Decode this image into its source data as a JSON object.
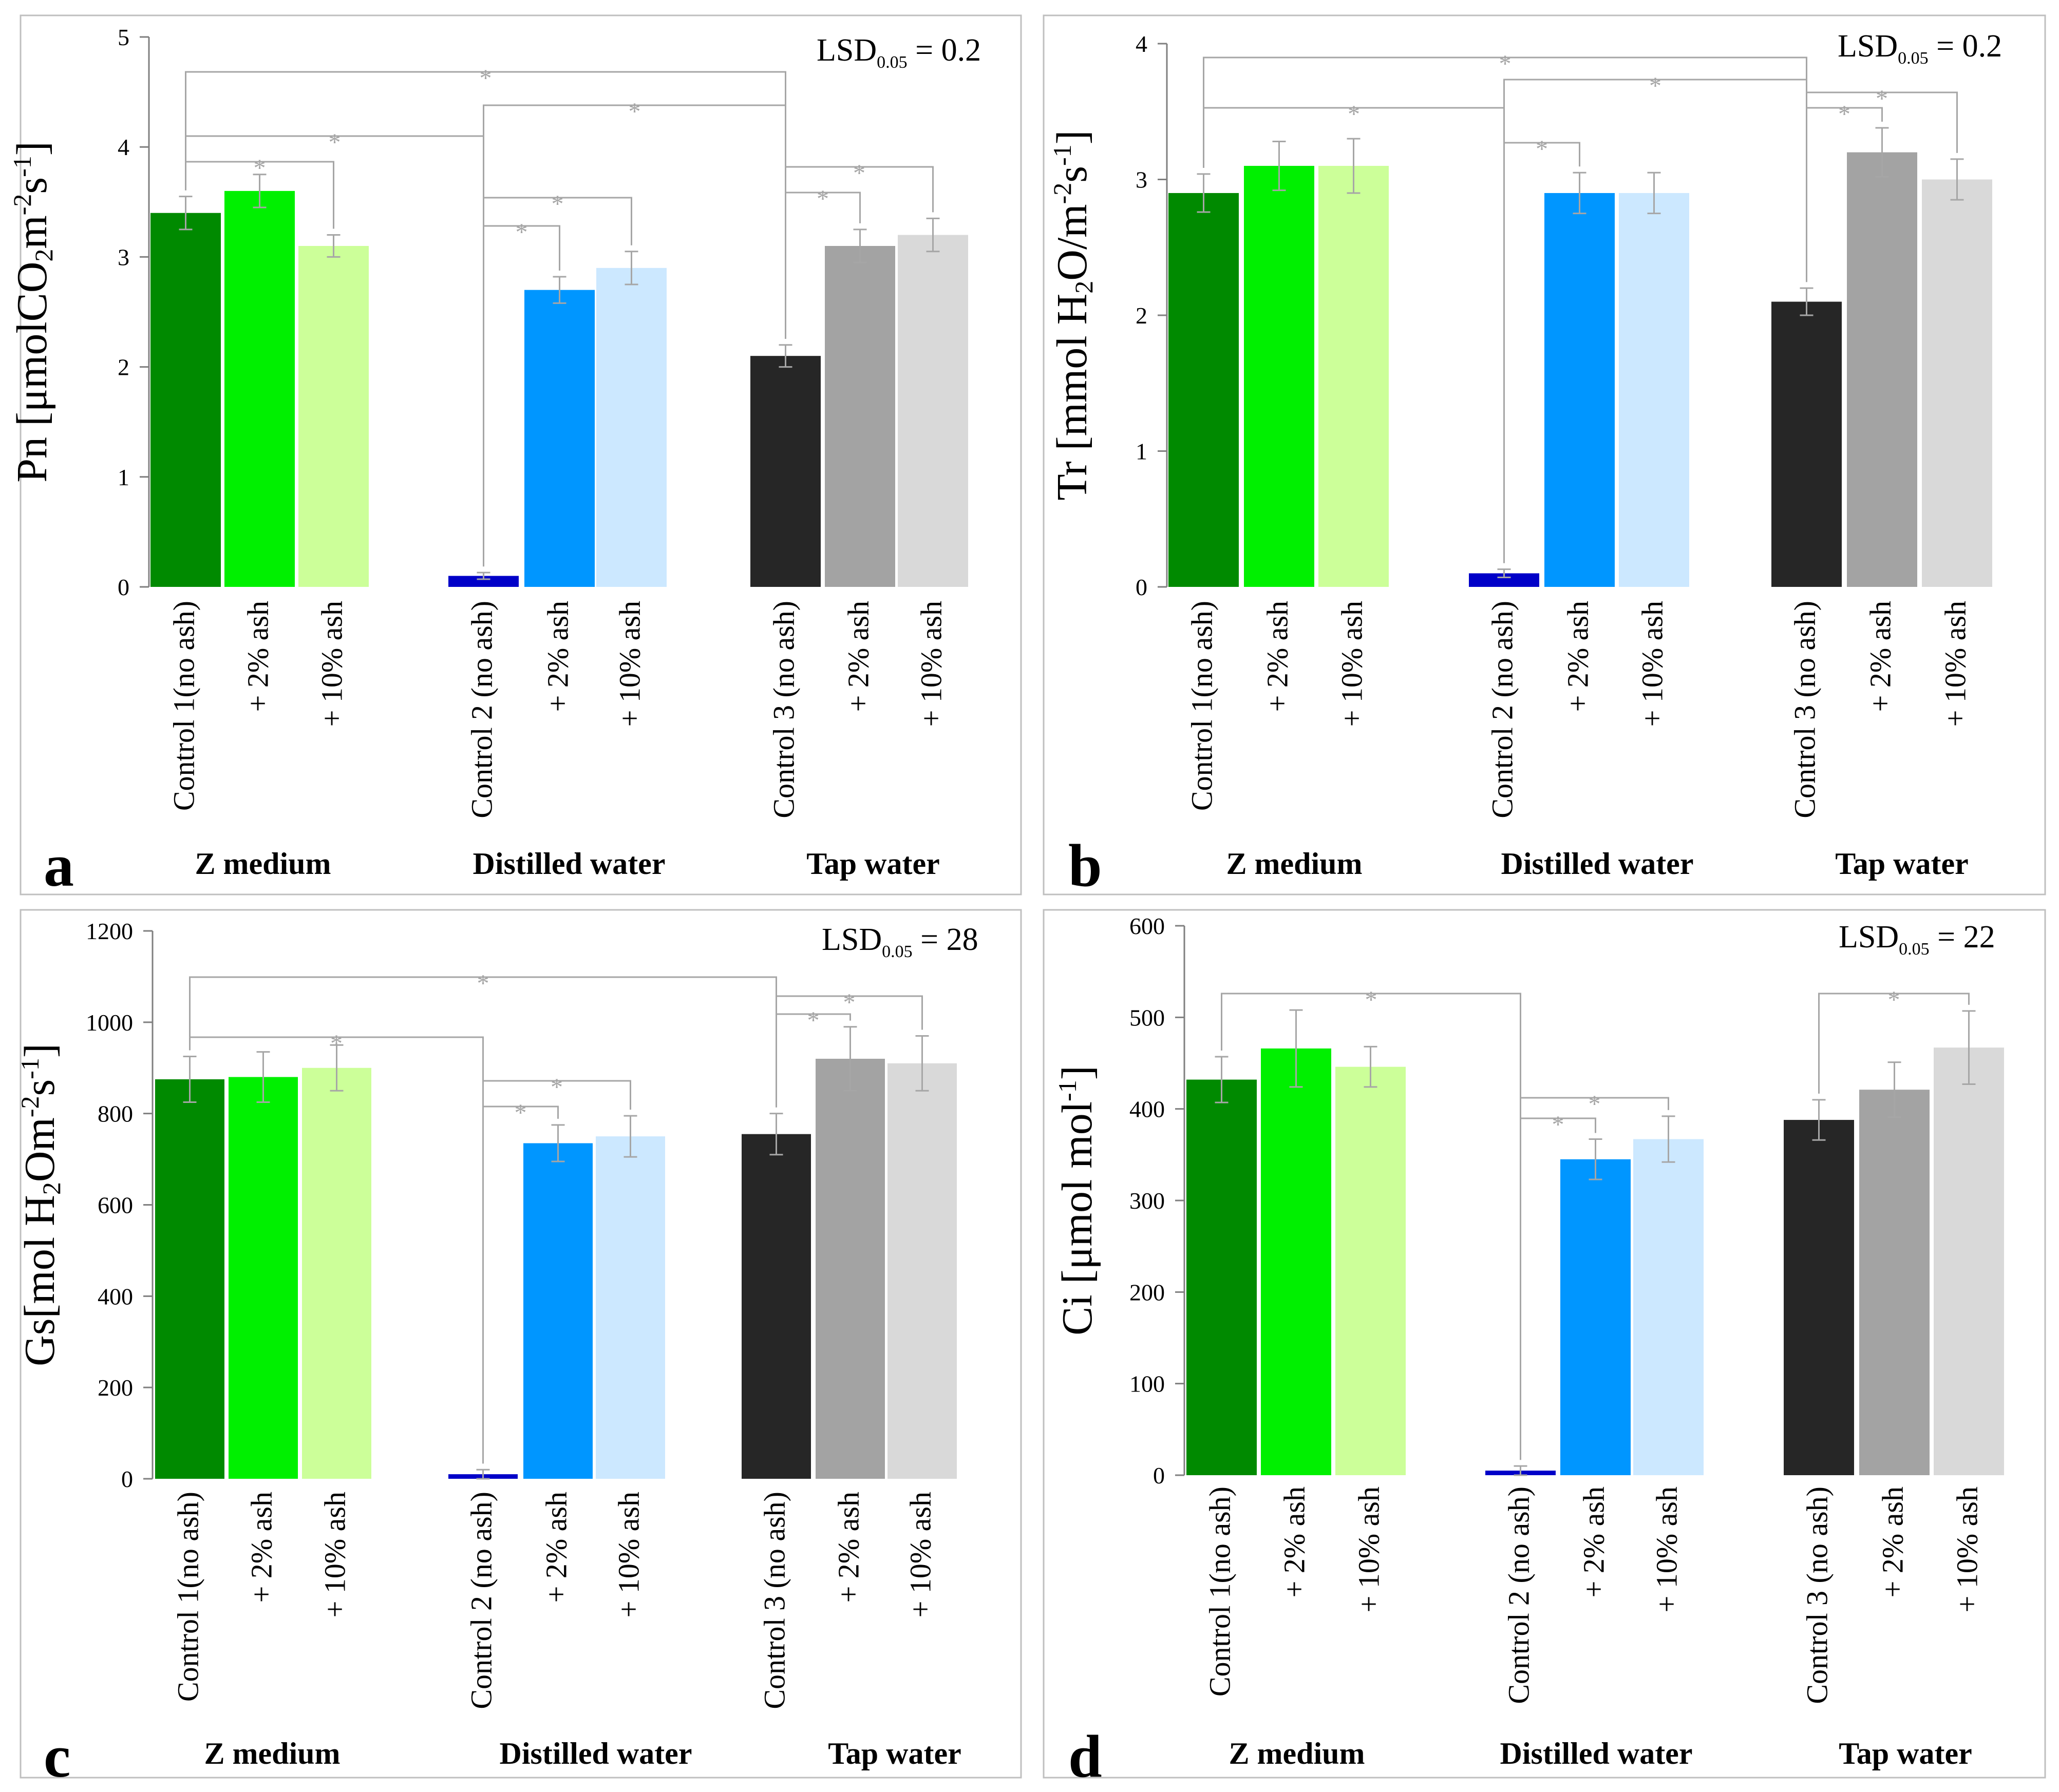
{
  "figure": {
    "colors": {
      "z_control": "#008a00",
      "z_2": "#00f000",
      "z_10": "#ccff99",
      "d_control": "#0000c8",
      "d_2": "#0096ff",
      "d_10": "#cce8ff",
      "t_control": "#262626",
      "t_2": "#a3a3a3",
      "t_10": "#d9d9d9",
      "bracket": "#a6a6a6",
      "panel_border": "#bfbfbf"
    },
    "categories": [
      "Control 1(no ash)",
      "+ 2% ash",
      "+ 10% ash",
      "Control 2 (no ash)",
      "+ 2% ash",
      "+ 10% ash",
      "Control 3 (no ash)",
      "+ 2% ash",
      "+ 10% ash"
    ],
    "groups": [
      "Z medium",
      "Distilled water",
      "Tap water"
    ],
    "star": "*"
  },
  "chart_data": [
    {
      "type": "bar",
      "panel_label": "a",
      "ylabel_parts": [
        "Pn [μmolCO",
        "2",
        "m",
        "-2",
        "s",
        "-1",
        "]"
      ],
      "lsd_parts": [
        "LSD",
        "0.05",
        " = 0.2"
      ],
      "ylim": [
        0,
        5
      ],
      "yticks": [
        "0",
        "1",
        "2",
        "3",
        "4",
        "5"
      ],
      "values": [
        3.4,
        3.6,
        3.1,
        0.1,
        2.7,
        2.9,
        2.1,
        3.1,
        3.2
      ],
      "errors": [
        0.15,
        0.15,
        0.1,
        0.03,
        0.12,
        0.15,
        0.1,
        0.15,
        0.15
      ],
      "brackets": [
        [
          0,
          6
        ],
        [
          3,
          6
        ],
        [
          0,
          3
        ],
        [
          0,
          2
        ],
        [
          3,
          5
        ],
        [
          3,
          4
        ],
        [
          6,
          8
        ],
        [
          6,
          7
        ]
      ]
    },
    {
      "type": "bar",
      "panel_label": "b",
      "ylabel_parts": [
        "Tr [mmol H",
        "2",
        "O/m",
        "-2",
        "s",
        "-1",
        "]"
      ],
      "lsd_parts": [
        "LSD",
        "0.05",
        " = 0.2"
      ],
      "ylim": [
        0,
        4
      ],
      "yticks": [
        "0",
        "1",
        "2",
        "3",
        "4"
      ],
      "values": [
        2.9,
        3.1,
        3.1,
        0.1,
        2.9,
        2.9,
        2.1,
        3.2,
        3.0
      ],
      "errors": [
        0.14,
        0.18,
        0.2,
        0.03,
        0.15,
        0.15,
        0.1,
        0.18,
        0.15
      ],
      "brackets": [
        [
          0,
          6
        ],
        [
          3,
          6
        ],
        [
          0,
          3
        ],
        [
          3,
          4
        ],
        [
          6,
          8
        ],
        [
          6,
          7
        ]
      ]
    },
    {
      "type": "bar",
      "panel_label": "c",
      "ylabel_parts": [
        "Gs[mol H",
        "2",
        "Om",
        "-2",
        "s",
        "-1",
        "]"
      ],
      "lsd_parts": [
        "LSD",
        "0.05",
        " = 28"
      ],
      "ylim": [
        0,
        1200
      ],
      "yticks": [
        "0",
        "200",
        "400",
        "600",
        "800",
        "1000",
        "1200"
      ],
      "values": [
        875,
        880,
        900,
        10,
        735,
        750,
        755,
        920,
        910
      ],
      "errors": [
        50,
        55,
        50,
        10,
        40,
        45,
        45,
        70,
        60
      ],
      "brackets": [
        [
          0,
          6
        ],
        [
          0,
          3
        ],
        [
          3,
          5
        ],
        [
          3,
          4
        ],
        [
          6,
          8
        ],
        [
          6,
          7
        ]
      ]
    },
    {
      "type": "bar",
      "panel_label": "d",
      "ylabel_parts": [
        "Ci [μmol mol",
        "-1",
        "]"
      ],
      "lsd_parts": [
        "LSD",
        "0.05",
        " = 22"
      ],
      "ylim": [
        0,
        600
      ],
      "yticks": [
        "0",
        "100",
        "200",
        "300",
        "400",
        "500",
        "600"
      ],
      "values": [
        432,
        466,
        446,
        5,
        345,
        367,
        388,
        421,
        467
      ],
      "errors": [
        25,
        42,
        22,
        5,
        22,
        25,
        22,
        30,
        40
      ],
      "brackets": [
        [
          0,
          3
        ],
        [
          3,
          5
        ],
        [
          3,
          4
        ],
        [
          6,
          8
        ]
      ]
    }
  ]
}
